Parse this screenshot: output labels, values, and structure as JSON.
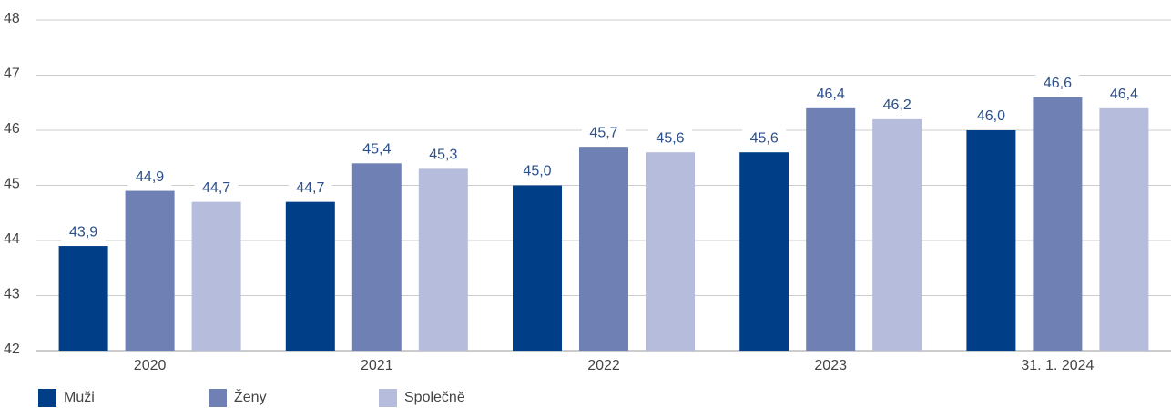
{
  "chart_data": {
    "type": "bar",
    "categories": [
      "2020",
      "2021",
      "2022",
      "2023",
      "31. 1. 2024"
    ],
    "series": [
      {
        "name": "Muži",
        "color": "#003f87",
        "values": [
          43.9,
          44.7,
          45.0,
          45.6,
          46.0
        ],
        "value_labels": [
          "43,9",
          "44,7",
          "45,0",
          "45,6",
          "46,0"
        ]
      },
      {
        "name": "Ženy",
        "color": "#6f80b5",
        "values": [
          44.9,
          45.4,
          45.7,
          46.4,
          46.6
        ],
        "value_labels": [
          "44,9",
          "45,4",
          "45,7",
          "46,4",
          "46,6"
        ]
      },
      {
        "name": "Společně",
        "color": "#b5bcdc",
        "values": [
          44.7,
          45.3,
          45.6,
          46.2,
          46.4
        ],
        "value_labels": [
          "44,7",
          "45,3",
          "45,6",
          "46,2",
          "46,4"
        ]
      }
    ],
    "ylim": [
      42,
      48
    ],
    "yticks": [
      42,
      43,
      44,
      45,
      46,
      47,
      48
    ],
    "grid": true,
    "legend": "bottom-left"
  }
}
